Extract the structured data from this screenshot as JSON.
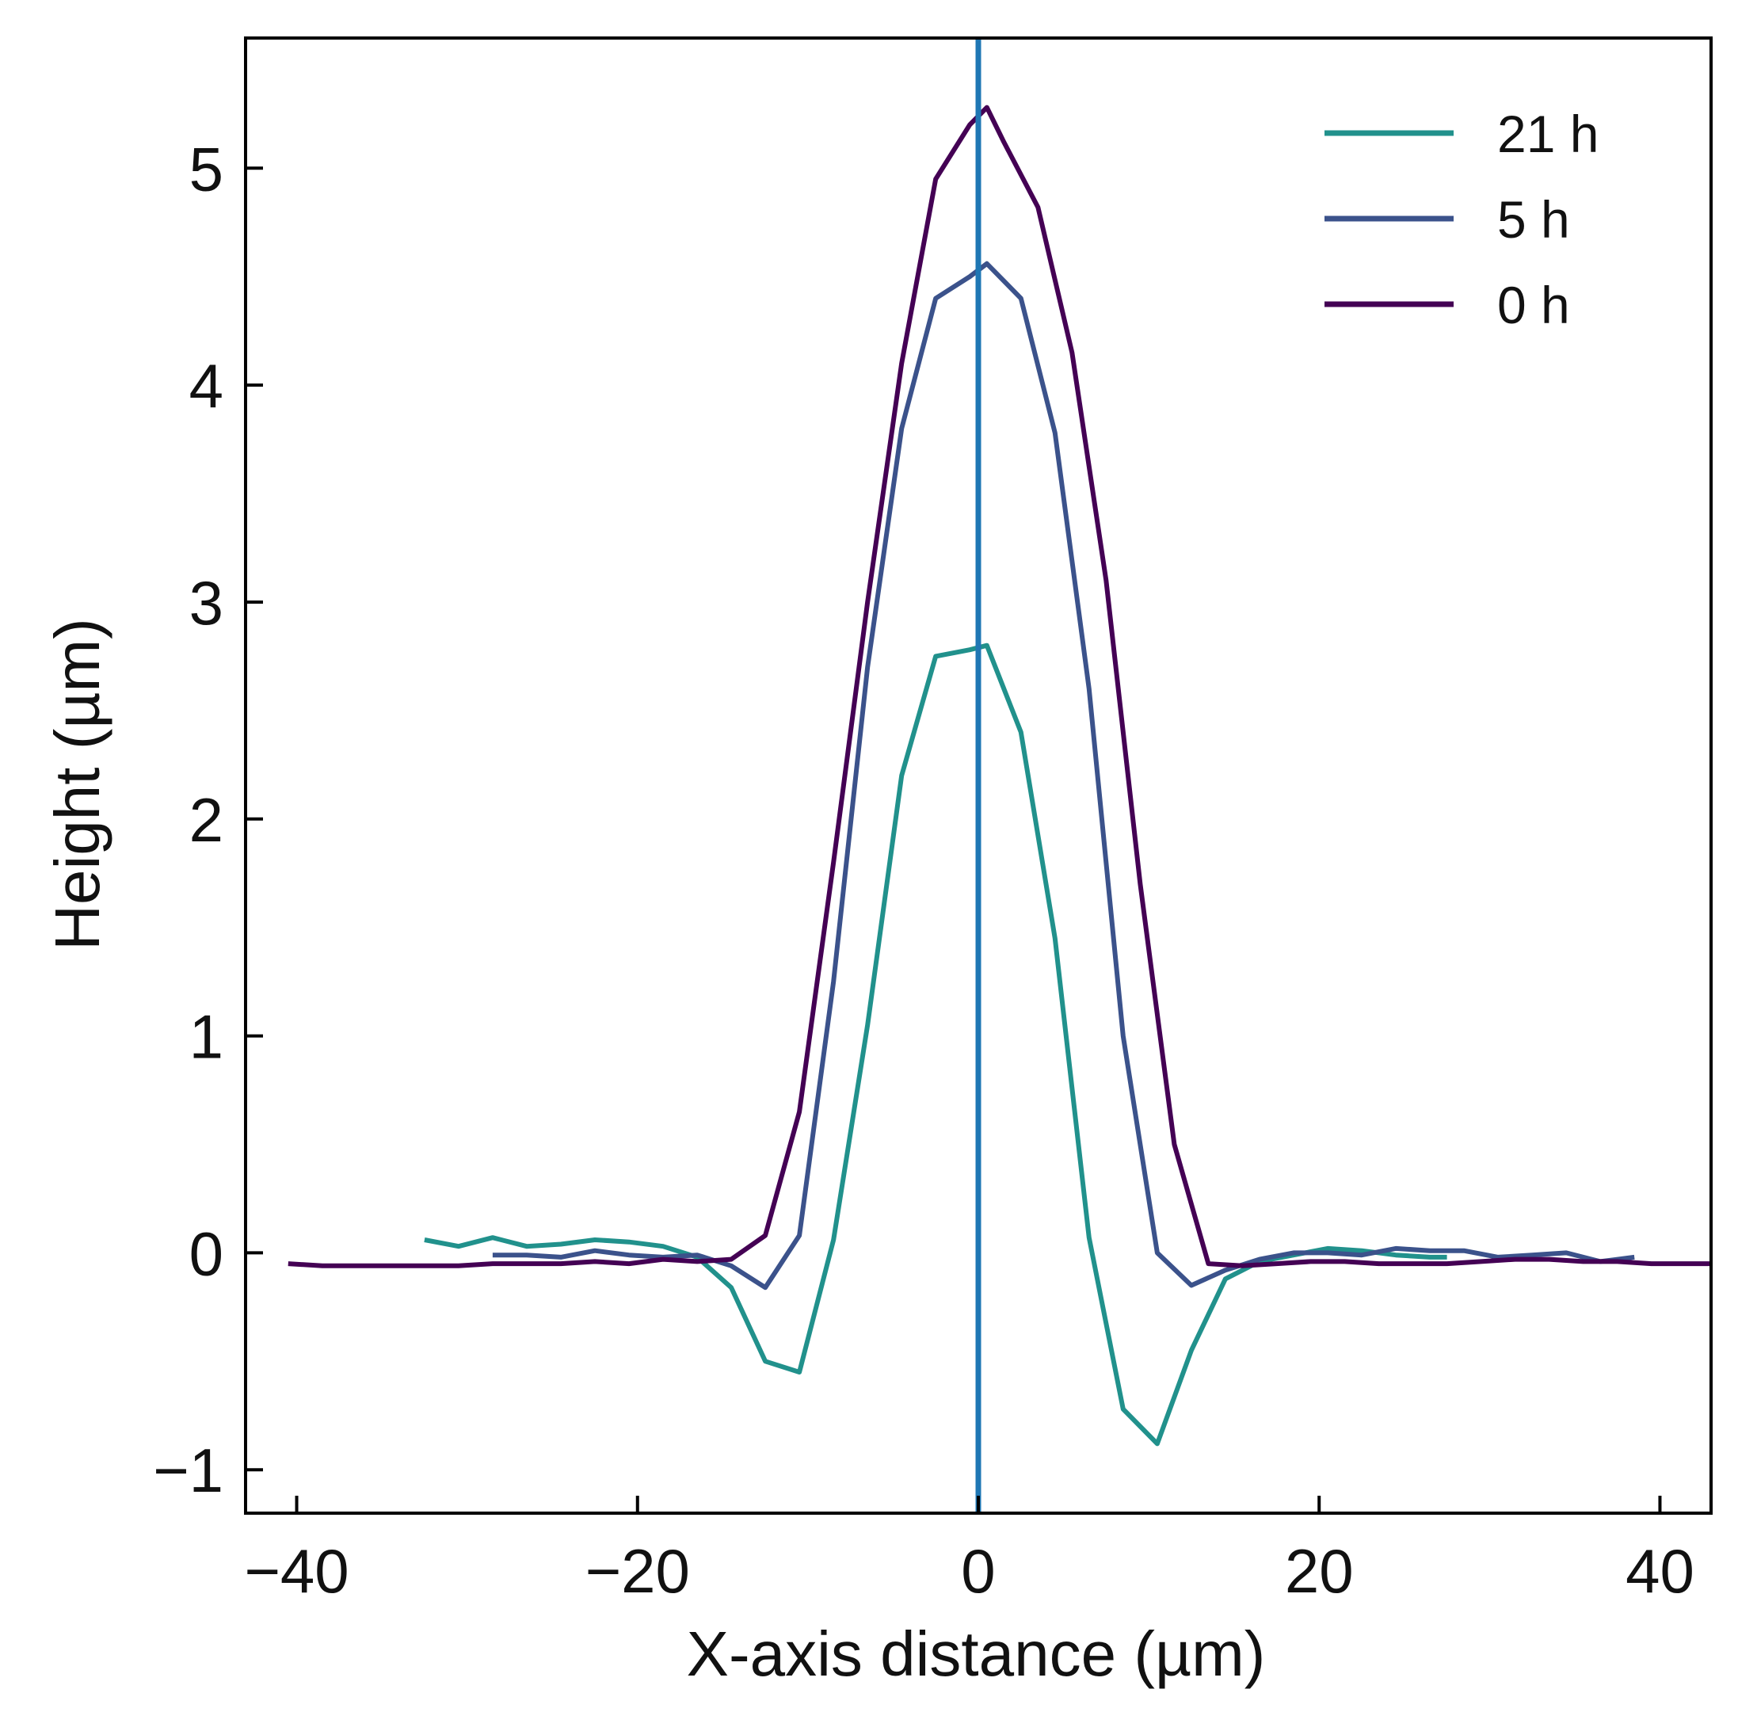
{
  "chart_data": {
    "type": "line",
    "title": "",
    "xlabel": "X-axis distance (µm)",
    "ylabel": "Height (µm)",
    "xlim": [
      -43,
      43
    ],
    "ylim": [
      -1.2,
      5.6
    ],
    "xticks": [
      -40,
      -20,
      0,
      20,
      40
    ],
    "xtick_labels": [
      "−40",
      "−20",
      "0",
      "20",
      "40"
    ],
    "yticks": [
      -1,
      0,
      1,
      2,
      3,
      4,
      5
    ],
    "ytick_labels": [
      "−1",
      "0",
      "1",
      "2",
      "3",
      "4",
      "5"
    ],
    "grid": false,
    "legend_position": "top-right",
    "vline": {
      "x": 0,
      "color": "#1f77b4"
    },
    "series": [
      {
        "name": "21 h",
        "color": "#21918c",
        "x": [
          -32.5,
          -30.5,
          -28.5,
          -26.5,
          -24.5,
          -22.5,
          -20.5,
          -18.5,
          -16.5,
          -14.5,
          -12.5,
          -10.5,
          -8.5,
          -6.5,
          -4.5,
          -2.5,
          -0.5,
          0.5,
          2.5,
          4.5,
          6.5,
          8.5,
          10.5,
          12.5,
          14.5,
          16.5,
          18.5,
          20.5,
          22.5,
          24.5,
          26.5,
          27.5
        ],
        "y": [
          0.06,
          0.03,
          0.07,
          0.03,
          0.04,
          0.06,
          0.05,
          0.03,
          -0.02,
          -0.16,
          -0.5,
          -0.55,
          0.06,
          1.05,
          2.2,
          2.75,
          2.78,
          2.8,
          2.4,
          1.45,
          0.07,
          -0.72,
          -0.88,
          -0.45,
          -0.12,
          -0.04,
          -0.01,
          0.02,
          0.01,
          -0.01,
          -0.02,
          -0.02
        ]
      },
      {
        "name": "5 h",
        "color": "#3b528b",
        "x": [
          -28.5,
          -26.5,
          -24.5,
          -22.5,
          -20.5,
          -18.5,
          -16.5,
          -14.5,
          -12.5,
          -10.5,
          -8.5,
          -6.5,
          -4.5,
          -2.5,
          -0.5,
          0.5,
          2.5,
          4.5,
          6.5,
          8.5,
          10.5,
          12.5,
          14.5,
          16.5,
          18.5,
          20.5,
          22.5,
          24.5,
          26.5,
          28.5,
          30.5,
          32.5,
          34.5,
          36.5,
          38.5
        ],
        "y": [
          -0.01,
          -0.01,
          -0.02,
          0.01,
          -0.01,
          -0.02,
          -0.01,
          -0.06,
          -0.16,
          0.08,
          1.25,
          2.7,
          3.8,
          4.4,
          4.5,
          4.56,
          4.4,
          3.78,
          2.6,
          1.0,
          0.0,
          -0.15,
          -0.08,
          -0.03,
          0.0,
          0.0,
          -0.01,
          0.02,
          0.01,
          0.01,
          -0.02,
          -0.01,
          0.0,
          -0.04,
          -0.02
        ]
      },
      {
        "name": "0 h",
        "color": "#440154",
        "x": [
          -40.5,
          -38.5,
          -36.5,
          -34.5,
          -32.5,
          -30.5,
          -28.5,
          -26.5,
          -24.5,
          -22.5,
          -20.5,
          -18.5,
          -16.5,
          -14.5,
          -12.5,
          -10.5,
          -8.5,
          -6.5,
          -4.5,
          -2.5,
          -0.5,
          0.5,
          1.5,
          3.5,
          5.5,
          7.5,
          9.5,
          11.5,
          13.5,
          15.5,
          17.5,
          19.5,
          21.5,
          23.5,
          25.5,
          27.5,
          29.5,
          31.5,
          33.5,
          35.5,
          37.5,
          39.5,
          41.5,
          43.0
        ],
        "y": [
          -0.05,
          -0.06,
          -0.06,
          -0.06,
          -0.06,
          -0.06,
          -0.05,
          -0.05,
          -0.05,
          -0.04,
          -0.05,
          -0.03,
          -0.04,
          -0.03,
          0.08,
          0.65,
          1.8,
          3.0,
          4.1,
          4.95,
          5.2,
          5.28,
          5.12,
          4.82,
          4.15,
          3.1,
          1.7,
          0.5,
          -0.05,
          -0.06,
          -0.05,
          -0.04,
          -0.04,
          -0.05,
          -0.05,
          -0.05,
          -0.04,
          -0.03,
          -0.03,
          -0.04,
          -0.04,
          -0.05,
          -0.05,
          -0.05
        ]
      }
    ]
  }
}
